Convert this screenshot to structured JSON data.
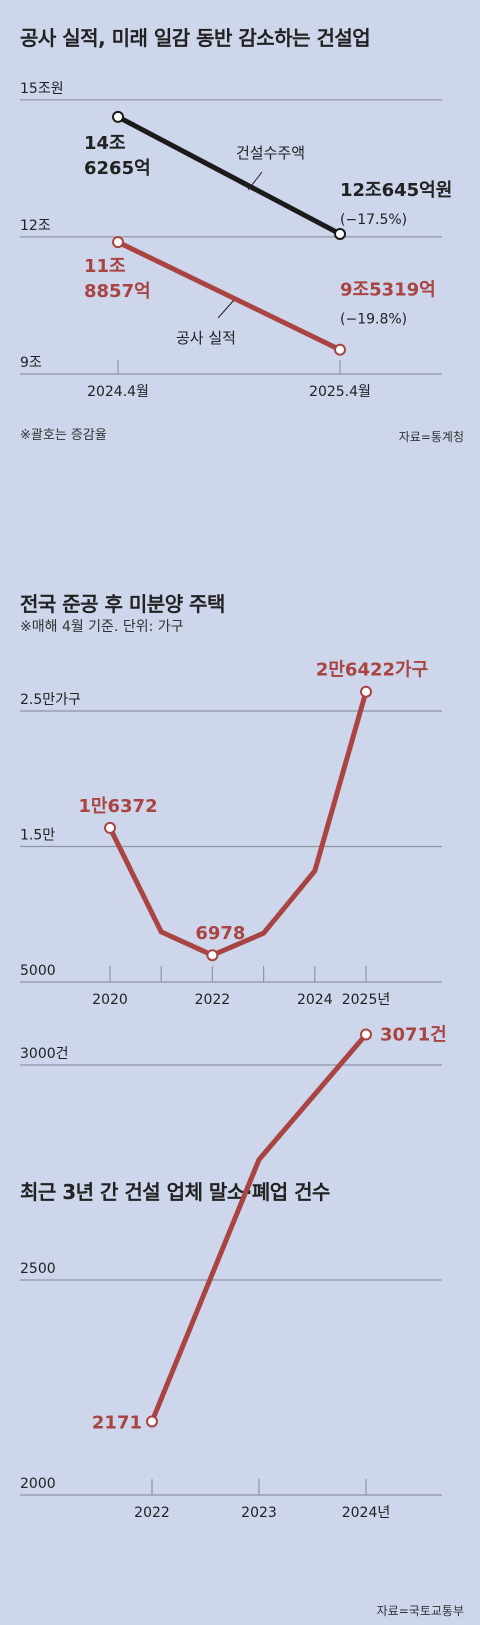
{
  "colors": {
    "background": "#cdd6ea",
    "red": "#a94442",
    "black": "#1b1b1b",
    "grid": "#8e95a4"
  },
  "chart1": {
    "title": "공사 실적, 미래 일감 동반 감소하는 건설업",
    "note": "※괄호는 증감율",
    "source": "자료=통계청",
    "chart_data": {
      "type": "line",
      "categories": [
        "2024.4월",
        "2025.4월"
      ],
      "ytick_labels": [
        "15조원",
        "12조",
        "9조"
      ],
      "yticks": [
        15,
        12,
        9
      ],
      "ylim": [
        9,
        15
      ],
      "unit": "조원",
      "series": [
        {
          "name": "건설수주액",
          "values": [
            14.6265,
            12.0645
          ],
          "labels": [
            [
              "14조",
              "6265억"
            ],
            [
              "12조645억원"
            ]
          ],
          "change": "(−17.5%)"
        },
        {
          "name": "공사 실적",
          "values": [
            11.8857,
            9.5319
          ],
          "labels": [
            [
              "11조",
              "8857억"
            ],
            [
              "9조5319억"
            ]
          ],
          "change": "(−19.8%)"
        }
      ]
    }
  },
  "chart2": {
    "title": "전국 준공 후 미분양 주택",
    "subtitle": "※매해 4월 기준. 단위: 가구",
    "chart_data": {
      "type": "line",
      "x": [
        2020,
        2021,
        2022,
        2023,
        2024,
        2025
      ],
      "xtick_labels": [
        "2020",
        "",
        "2022",
        "",
        "2024",
        "2025년"
      ],
      "ytick_labels": [
        "2.5만가구",
        "1.5만",
        "5000"
      ],
      "yticks": [
        25000,
        15000,
        5000
      ],
      "ylim": [
        5000,
        25000
      ],
      "series": [
        {
          "values": [
            16372,
            8700,
            6978,
            8600,
            13200,
            26422
          ]
        }
      ],
      "data_labels": [
        "1만6372",
        "",
        "6978",
        "",
        "",
        "2만6422가구"
      ]
    }
  },
  "chart3": {
    "title": "최근 3년 간 건설 업체 말소·폐업 건수",
    "source": "자료=국토교통부",
    "chart_data": {
      "type": "line",
      "x": [
        2022,
        2023,
        2024
      ],
      "xtick_labels": [
        "2022",
        "2023",
        "2024년"
      ],
      "ytick_labels": [
        "3000건",
        "2500",
        "2000"
      ],
      "yticks": [
        3000,
        2500,
        2000
      ],
      "ylim": [
        2000,
        3000
      ],
      "series": [
        {
          "values": [
            2171,
            2780,
            3071
          ]
        }
      ],
      "data_labels": [
        "2171",
        "",
        "3071건"
      ]
    }
  }
}
